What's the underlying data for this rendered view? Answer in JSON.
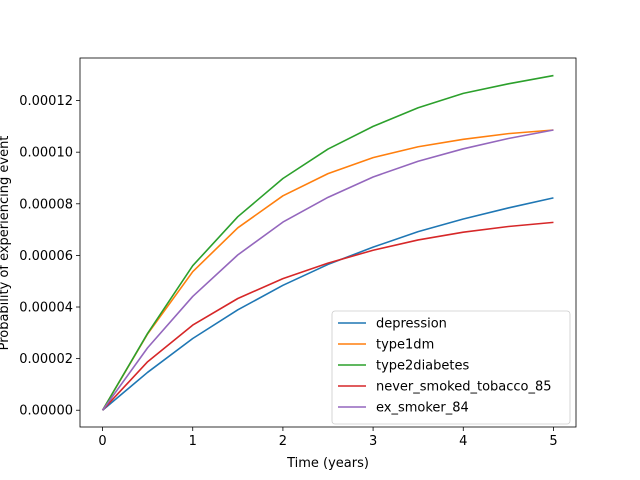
{
  "chart_data": {
    "type": "line",
    "title": "",
    "xlabel": "Time (years)",
    "ylabel": "Probability of experiencing event",
    "xlim": [
      -0.25,
      5.25
    ],
    "ylim": [
      -6.5e-06,
      0.0001365
    ],
    "xticks": [
      0,
      1,
      2,
      3,
      4,
      5
    ],
    "xtick_labels": [
      "0",
      "1",
      "2",
      "3",
      "4",
      "5"
    ],
    "yticks": [
      0,
      2e-05,
      4e-05,
      6e-05,
      8e-05,
      0.0001,
      0.00012
    ],
    "ytick_labels": [
      "0.00000",
      "0.00002",
      "0.00004",
      "0.00006",
      "0.00008",
      "0.00010",
      "0.00012"
    ],
    "grid": false,
    "legend_position": "lower-right",
    "x": [
      0,
      0.5,
      1,
      1.5,
      2,
      2.5,
      3,
      3.5,
      4,
      4.5,
      5
    ],
    "series": [
      {
        "name": "depression",
        "color": "#1f77b4",
        "values": [
          0,
          1.47e-05,
          2.78e-05,
          3.89e-05,
          4.84e-05,
          5.65e-05,
          6.32e-05,
          6.92e-05,
          7.41e-05,
          7.84e-05,
          8.23e-05
        ]
      },
      {
        "name": "type1dm",
        "color": "#ff7f0e",
        "values": [
          0,
          2.96e-05,
          5.37e-05,
          7.07e-05,
          8.31e-05,
          9.17e-05,
          9.79e-05,
          0.0001021,
          0.000105,
          0.0001072,
          0.0001086
        ]
      },
      {
        "name": "type2diabetes",
        "color": "#2ca02c",
        "values": [
          0,
          2.98e-05,
          5.6e-05,
          7.5e-05,
          8.98e-05,
          0.0001012,
          0.00011,
          0.0001172,
          0.0001228,
          0.0001265,
          0.0001297
        ]
      },
      {
        "name": "never_smoked_tobacco_85",
        "color": "#d62728",
        "values": [
          0,
          1.88e-05,
          3.3e-05,
          4.33e-05,
          5.1e-05,
          5.7e-05,
          6.2e-05,
          6.6e-05,
          6.9e-05,
          7.12e-05,
          7.28e-05
        ]
      },
      {
        "name": "ex_smoker_84",
        "color": "#9467bd",
        "values": [
          0,
          2.42e-05,
          4.41e-05,
          6.02e-05,
          7.29e-05,
          8.25e-05,
          9.04e-05,
          9.65e-05,
          0.0001013,
          0.0001053,
          0.0001086
        ]
      }
    ]
  }
}
